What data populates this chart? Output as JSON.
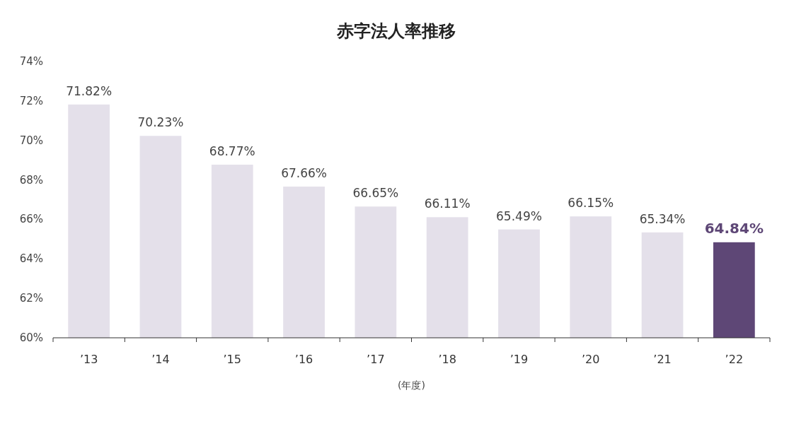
{
  "chart_data": {
    "type": "bar",
    "title": "赤字法人率推移",
    "xlabel": "(年度)",
    "categories": [
      "’13",
      "’14",
      "’15",
      "’16",
      "’17",
      "’18",
      "’19",
      "’20",
      "’21",
      "’22"
    ],
    "values": [
      71.82,
      70.23,
      68.77,
      67.66,
      66.65,
      66.11,
      65.49,
      66.15,
      65.34,
      64.84
    ],
    "colors": [
      "#e4e0ea",
      "#e4e0ea",
      "#e4e0ea",
      "#e4e0ea",
      "#e4e0ea",
      "#e4e0ea",
      "#e4e0ea",
      "#e4e0ea",
      "#e4e0ea",
      "#5e4776"
    ],
    "value_labels": [
      "71.82%",
      "70.23%",
      "68.77%",
      "67.66%",
      "66.65%",
      "66.11%",
      "65.49%",
      "66.15%",
      "65.34%",
      "64.84%"
    ],
    "ylim": [
      60,
      74
    ],
    "yticks": [
      {
        "value": 60,
        "label": "60%"
      },
      {
        "value": 62,
        "label": "62%"
      },
      {
        "value": 64,
        "label": "64%"
      },
      {
        "value": 66,
        "label": "66%"
      },
      {
        "value": 68,
        "label": "68%"
      },
      {
        "value": 70,
        "label": "70%"
      },
      {
        "value": 72,
        "label": "72%"
      },
      {
        "value": 74,
        "label": "74%"
      }
    ],
    "grid": false
  }
}
